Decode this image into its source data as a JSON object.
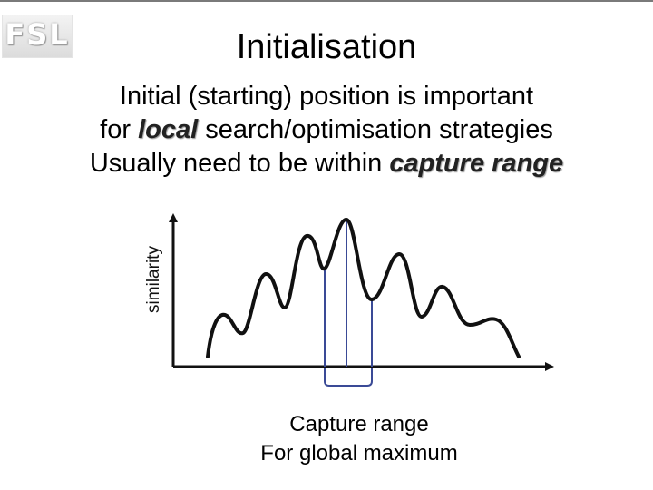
{
  "logo": {
    "text": "FSL"
  },
  "title": "Initialisation",
  "body": {
    "line1": "Initial (starting) position is important",
    "line2_pre": "for ",
    "line2_emph": "local",
    "line2_post": " search/optimisation strategies",
    "line3_pre": "Usually need to be within ",
    "line3_emph": "capture range"
  },
  "diagram": {
    "ylabel": "similarity",
    "curve_color": "#111111",
    "range_color": "#3a4a96",
    "caption_line1": "Capture range",
    "caption_line2": "For global maximum"
  }
}
